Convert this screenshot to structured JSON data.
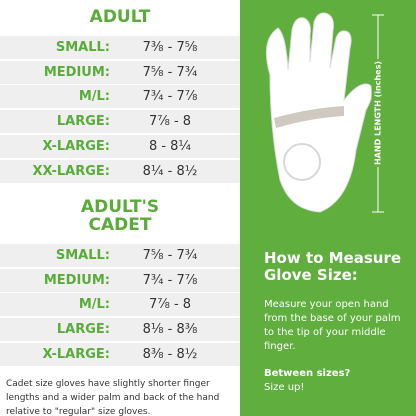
{
  "adult": {
    "title": "ADULT",
    "rows": [
      {
        "label": "SMALL:",
        "value": "7⅜ - 7⅝"
      },
      {
        "label": "MEDIUM:",
        "value": "7⅝ - 7¾"
      },
      {
        "label": "M/L:",
        "value": "7¾ - 7⅞"
      },
      {
        "label": "LARGE:",
        "value": "7⅞ - 8"
      },
      {
        "label": "X-LARGE:",
        "value": "8 - 8¼"
      },
      {
        "label": "XX-LARGE:",
        "value": "8¼ - 8½"
      }
    ]
  },
  "cadet": {
    "title": [
      "ADULT'S",
      "CADET"
    ],
    "rows": [
      {
        "label": "SMALL:",
        "value": "7⅝ - 7¾"
      },
      {
        "label": "MEDIUM:",
        "value": "7¾ - 7⅞"
      },
      {
        "label": "M/L:",
        "value": "7⅞ - 8"
      },
      {
        "label": "LARGE:",
        "value": "8⅛ - 8⅜"
      },
      {
        "label": "X-LARGE:",
        "value": "8⅜ - 8½"
      }
    ]
  },
  "note": "Cadet size gloves have slightly shorter finger lengths and a wider palm and back of the hand relative to \"regular\" size gloves.",
  "side": {
    "dimension_label": "HAND LENGTH (inches)",
    "heading": [
      "How to Measure",
      "Glove Size:"
    ],
    "body": "Measure your open hand from the base of your palm to the tip of your middle finger.",
    "between": "Between sizes?",
    "advice": "Size up!"
  }
}
